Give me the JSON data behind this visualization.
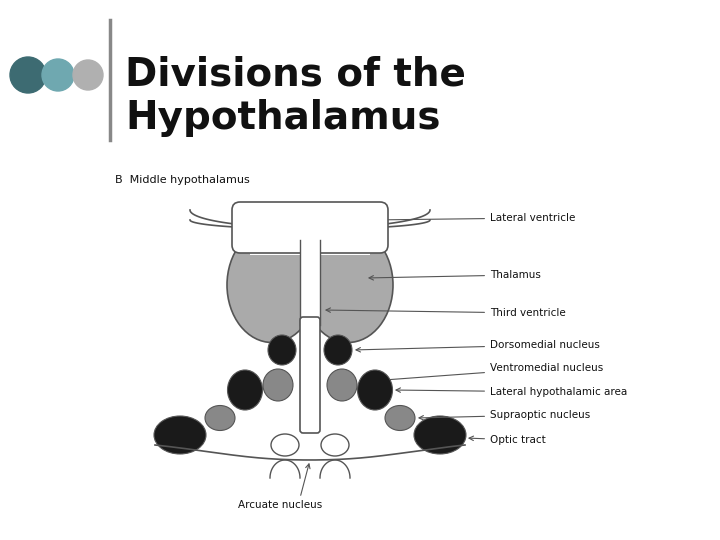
{
  "title": "Divisions of the\nHypothalamus",
  "title_fontsize": 28,
  "bg_color": "#ffffff",
  "dot_colors": [
    "#3d6b72",
    "#6fa8b0",
    "#b0b0b0"
  ],
  "line_color": "#555555",
  "labels": {
    "section": "B  Middle hypothalamus",
    "lateral_ventricle": "Lateral ventricle",
    "thalamus": "Thalamus",
    "third_ventricle": "Third ventricle",
    "dorsomedial": "Dorsomedial nucleus",
    "ventromedial": "Ventromedial nucleus",
    "lateral_hypo": "Lateral hypothalamic area",
    "supraoptic": "Supraoptic nucleus",
    "optic_tract": "Optic tract",
    "arcuate": "Arcuate nucleus"
  }
}
